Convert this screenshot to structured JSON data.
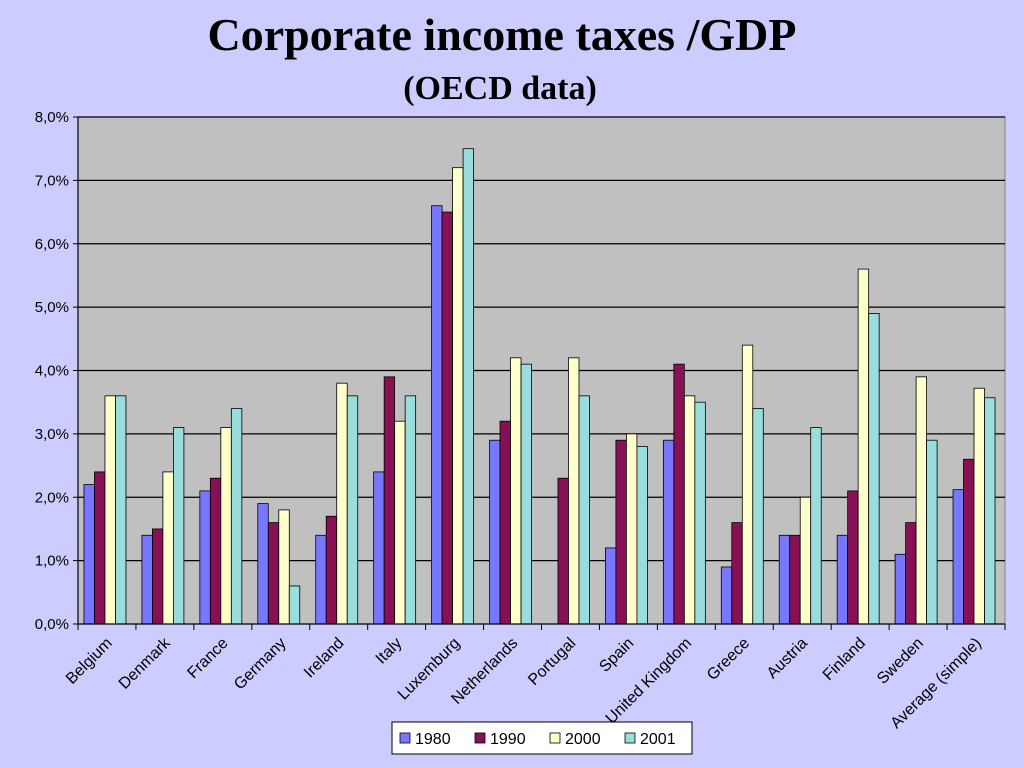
{
  "chart_data": {
    "type": "bar",
    "title": "Corporate income taxes /GDP",
    "subtitle": "(OECD data)",
    "xlabel": "",
    "ylabel": "",
    "ylim": [
      0,
      8
    ],
    "y_tick_labels": [
      "0,0%",
      "1,0%",
      "2,0%",
      "3,0%",
      "4,0%",
      "5,0%",
      "6,0%",
      "7,0%",
      "8,0%"
    ],
    "grid": true,
    "legend_position": "bottom-center",
    "categories": [
      "Belgium",
      "Denmark",
      "France",
      "Germany",
      "Ireland",
      "Italy",
      "Luxemburg",
      "Netherlands",
      "Portugal",
      "Spain",
      "United Kingdom",
      "Greece",
      "Austria",
      "Finland",
      "Sweden",
      "Average (simple)"
    ],
    "series": [
      {
        "name": "1980",
        "color": "#7777ff",
        "values": [
          2.2,
          1.4,
          2.1,
          1.9,
          1.4,
          2.4,
          6.6,
          2.9,
          null,
          1.2,
          2.9,
          0.9,
          1.4,
          1.4,
          1.1,
          2.12
        ]
      },
      {
        "name": "1990",
        "color": "#881155",
        "values": [
          2.4,
          1.5,
          2.3,
          1.6,
          1.7,
          3.9,
          6.5,
          3.2,
          2.3,
          2.9,
          4.1,
          1.6,
          1.4,
          2.1,
          1.6,
          2.6
        ]
      },
      {
        "name": "2000",
        "color": "#ffffcc",
        "values": [
          3.6,
          2.4,
          3.1,
          1.8,
          3.8,
          3.2,
          7.2,
          4.2,
          4.2,
          3.0,
          3.6,
          4.4,
          2.0,
          5.6,
          3.9,
          3.72
        ]
      },
      {
        "name": "2001",
        "color": "#99dddd",
        "values": [
          3.6,
          3.1,
          3.4,
          0.6,
          3.6,
          3.6,
          7.5,
          4.1,
          3.6,
          2.8,
          3.5,
          3.4,
          3.1,
          4.9,
          2.9,
          3.57
        ]
      }
    ],
    "colors": {
      "plot_background": "#c0c0c0",
      "page_background": "#ccccff",
      "gridline": "#000000"
    }
  }
}
